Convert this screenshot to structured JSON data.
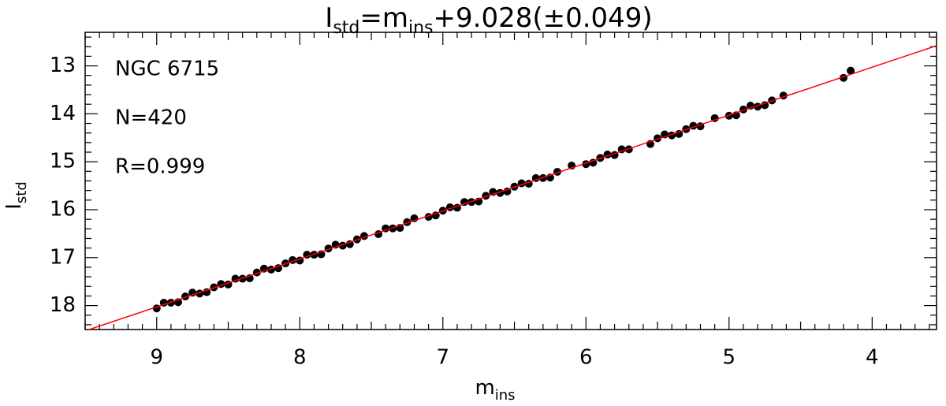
{
  "chart_data": {
    "type": "scatter",
    "title": [
      "I",
      "std",
      "=m",
      "ins",
      "+9.028(±0.049)"
    ],
    "x_label": [
      "m",
      "ins"
    ],
    "y_label": [
      "I",
      "std"
    ],
    "annotations": [
      "NGC 6715",
      "N=420",
      "R=0.999"
    ],
    "xlim": [
      9.5,
      3.55
    ],
    "ylim": [
      18.5,
      12.3
    ],
    "xticks": [
      9,
      8,
      7,
      6,
      5,
      4
    ],
    "yticks": [
      13,
      14,
      15,
      16,
      17,
      18
    ],
    "fit": {
      "intercept": 9.028,
      "color": "#ff0000"
    },
    "x": [
      9.0,
      8.95,
      8.9,
      8.85,
      8.8,
      8.75,
      8.7,
      8.65,
      8.6,
      8.55,
      8.5,
      8.45,
      8.4,
      8.35,
      8.3,
      8.25,
      8.2,
      8.15,
      8.1,
      8.05,
      8.0,
      7.95,
      7.9,
      7.85,
      7.8,
      7.75,
      7.7,
      7.65,
      7.6,
      7.55,
      7.45,
      7.4,
      7.35,
      7.3,
      7.25,
      7.2,
      7.1,
      7.05,
      7.0,
      6.95,
      6.9,
      6.85,
      6.8,
      6.75,
      6.7,
      6.65,
      6.6,
      6.55,
      6.5,
      6.45,
      6.4,
      6.35,
      6.3,
      6.25,
      6.2,
      6.1,
      6.0,
      5.95,
      5.9,
      5.85,
      5.8,
      5.75,
      5.7,
      5.55,
      5.5,
      5.45,
      5.4,
      5.35,
      5.3,
      5.25,
      5.2,
      5.1,
      5.0,
      4.95,
      4.9,
      4.85,
      4.8,
      4.75,
      4.7,
      4.62,
      4.2,
      4.15
    ],
    "series": [
      {
        "color": "#000000",
        "values": [
          18.06,
          17.94,
          17.94,
          17.93,
          17.81,
          17.73,
          17.75,
          17.72,
          17.62,
          17.55,
          17.56,
          17.44,
          17.44,
          17.43,
          17.31,
          17.23,
          17.25,
          17.22,
          17.12,
          17.05,
          17.06,
          16.94,
          16.94,
          16.93,
          16.81,
          16.73,
          16.75,
          16.72,
          16.62,
          16.55,
          16.51,
          16.39,
          16.39,
          16.38,
          16.26,
          16.18,
          16.15,
          16.12,
          16.02,
          15.95,
          15.96,
          15.84,
          15.84,
          15.83,
          15.71,
          15.63,
          15.65,
          15.62,
          15.52,
          15.45,
          15.46,
          15.34,
          15.34,
          15.33,
          15.21,
          15.08,
          15.05,
          15.02,
          14.92,
          14.85,
          14.86,
          14.74,
          14.74,
          14.63,
          14.51,
          14.43,
          14.45,
          14.42,
          14.32,
          14.25,
          14.26,
          14.09,
          14.04,
          14.03,
          13.91,
          13.83,
          13.85,
          13.82,
          13.72,
          13.62,
          13.25,
          13.1
        ]
      }
    ]
  }
}
